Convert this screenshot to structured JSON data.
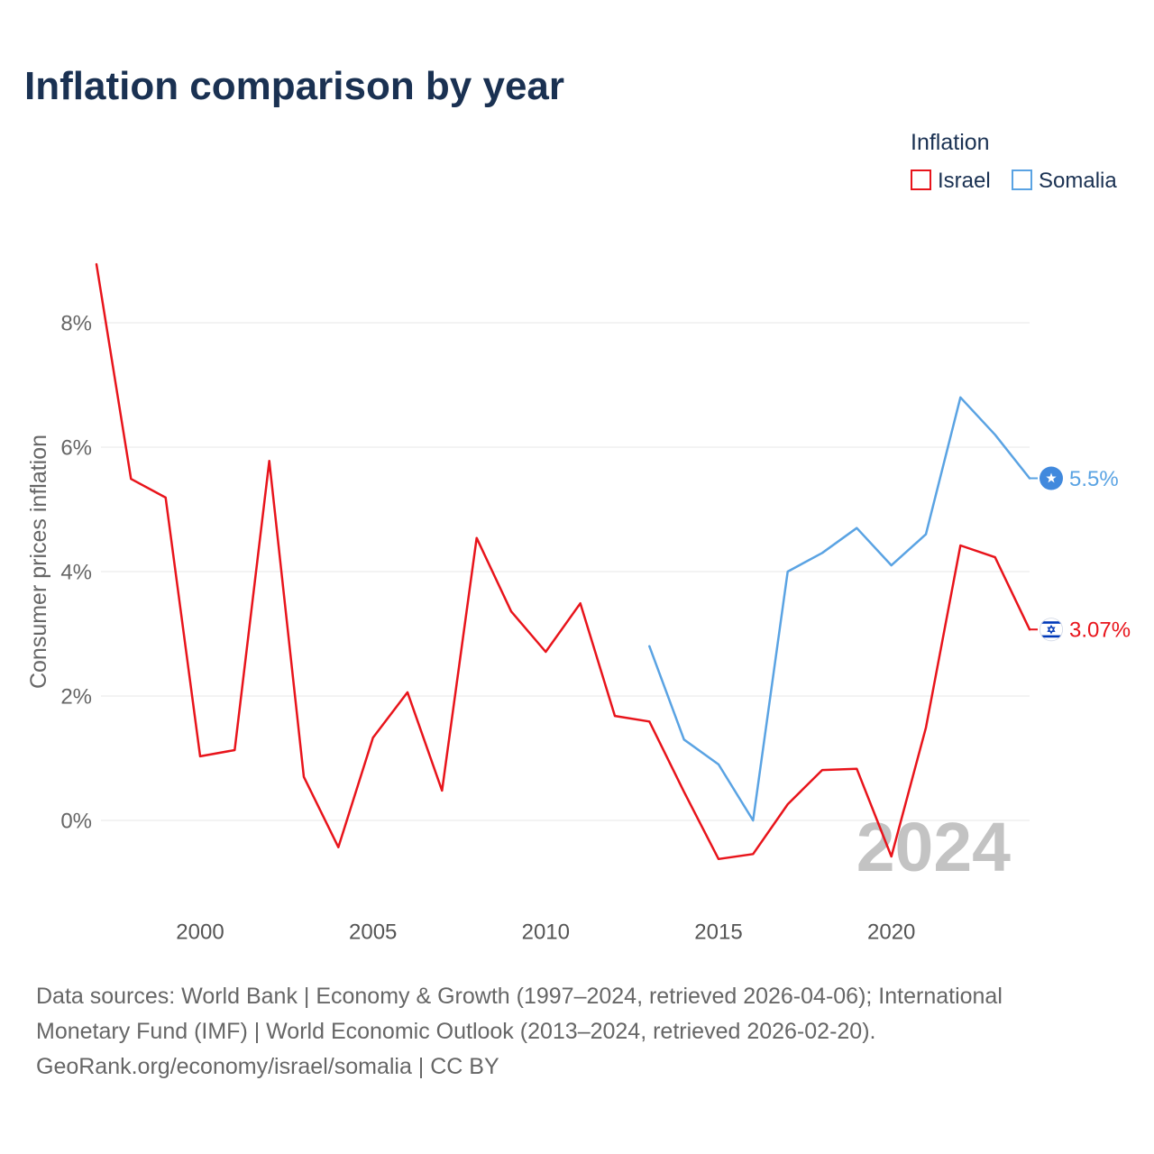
{
  "chart_data": {
    "type": "line",
    "title": "Inflation comparison by year",
    "legend_title": "Inflation",
    "ylabel": "Consumer prices inflation",
    "x": [
      1997,
      1998,
      1999,
      2000,
      2001,
      2002,
      2003,
      2004,
      2005,
      2006,
      2007,
      2008,
      2009,
      2010,
      2011,
      2012,
      2013,
      2014,
      2015,
      2016,
      2017,
      2018,
      2019,
      2020,
      2021,
      2022,
      2023,
      2024
    ],
    "xlim": [
      1997,
      2024
    ],
    "ylim": [
      -1.3,
      9.3
    ],
    "x_ticks": [
      2000,
      2005,
      2010,
      2015,
      2020
    ],
    "x_tick_labels": [
      "2000",
      "2005",
      "2010",
      "2015",
      "2020"
    ],
    "y_ticks": [
      0,
      2,
      4,
      6,
      8
    ],
    "y_tick_labels": [
      "0%",
      "2%",
      "4%",
      "6%",
      "8%"
    ],
    "grid": true,
    "year_watermark": "2024",
    "series": [
      {
        "name": "Israel",
        "color": "#e8141b",
        "flag": "israel-flag-icon",
        "end_label": "3.07%",
        "values": [
          8.94,
          5.49,
          5.19,
          1.03,
          1.13,
          5.78,
          0.7,
          -0.43,
          1.33,
          2.06,
          0.48,
          4.54,
          3.36,
          2.71,
          3.49,
          1.68,
          1.59,
          0.46,
          -0.62,
          -0.54,
          0.26,
          0.81,
          0.83,
          -0.58,
          1.49,
          4.42,
          4.23,
          3.07
        ]
      },
      {
        "name": "Somalia",
        "color": "#5aa3e3",
        "flag": "somalia-flag-icon",
        "end_label": "5.5%",
        "values": [
          null,
          null,
          null,
          null,
          null,
          null,
          null,
          null,
          null,
          null,
          null,
          null,
          null,
          null,
          null,
          null,
          2.8,
          1.3,
          0.9,
          0.0,
          4.0,
          4.3,
          4.7,
          4.1,
          4.6,
          6.8,
          6.2,
          5.5
        ]
      }
    ]
  },
  "footer": {
    "sources": "Data sources: World Bank | Economy & Growth (1997–2024, retrieved 2026-04-06); International Monetary Fund (IMF) | World Economic Outlook (2013–2024, retrieved 2026-02-20).",
    "attribution": "GeoRank.org/economy/israel/somalia | CC BY"
  }
}
